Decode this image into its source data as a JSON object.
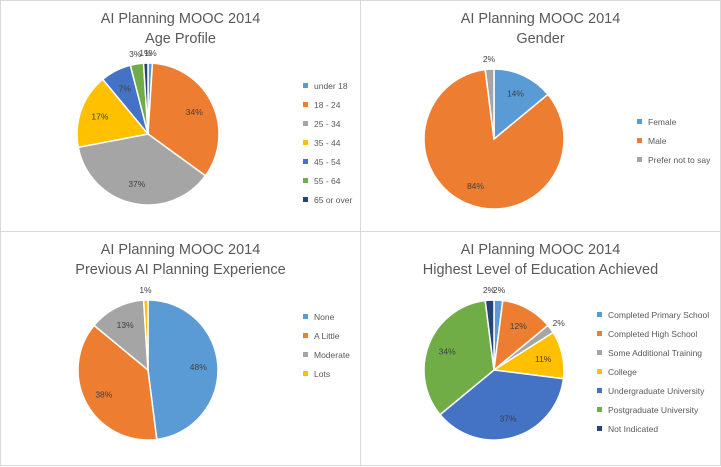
{
  "chart_data": [
    {
      "type": "pie",
      "title": "AI Planning MOOC 2014",
      "subtitle": "Age Profile",
      "categories": [
        "under 18",
        "18 - 24",
        "25 - 34",
        "35 - 44",
        "45 - 54",
        "55 - 64",
        "65 or over"
      ],
      "values": [
        1,
        34,
        37,
        17,
        7,
        3,
        1
      ],
      "labels": [
        "1%",
        "34%",
        "37%",
        "17%",
        "7%",
        "3%",
        "1%"
      ],
      "colors": [
        "#5B9BD5",
        "#ED7D31",
        "#A5A5A5",
        "#FFC000",
        "#4472C4",
        "#70AD47",
        "#264478"
      ],
      "legend_position": "right"
    },
    {
      "type": "pie",
      "title": "AI Planning MOOC 2014",
      "subtitle": "Gender",
      "categories": [
        "Female",
        "Male",
        "Prefer not to say"
      ],
      "values": [
        14,
        84,
        2
      ],
      "labels": [
        "14%",
        "84%",
        "2%"
      ],
      "colors": [
        "#5B9BD5",
        "#ED7D31",
        "#A5A5A5"
      ],
      "legend_position": "right"
    },
    {
      "type": "pie",
      "title": "AI Planning MOOC 2014",
      "subtitle": "Previous AI Planning Experience",
      "categories": [
        "None",
        "A Little",
        "Moderate",
        "Lots"
      ],
      "values": [
        48,
        38,
        13,
        1
      ],
      "labels": [
        "48%",
        "38%",
        "13%",
        "1%"
      ],
      "colors": [
        "#5B9BD5",
        "#ED7D31",
        "#A5A5A5",
        "#FFC000"
      ],
      "legend_position": "right"
    },
    {
      "type": "pie",
      "title": "AI Planning MOOC 2014",
      "subtitle": "Highest Level of Education Achieved",
      "categories": [
        "Completed Primary School",
        "Completed High School",
        "Some Additional Training",
        "College",
        "Undergraduate University",
        "Postgraduate University",
        "Not Indicated"
      ],
      "values": [
        2,
        12,
        2,
        11,
        37,
        34,
        2
      ],
      "labels": [
        "2%",
        "12%",
        "2%",
        "11%",
        "37%",
        "34%",
        "2%"
      ],
      "colors": [
        "#5B9BD5",
        "#ED7D31",
        "#A5A5A5",
        "#FFC000",
        "#4472C4",
        "#70AD47",
        "#264478"
      ],
      "legend_position": "right"
    }
  ]
}
